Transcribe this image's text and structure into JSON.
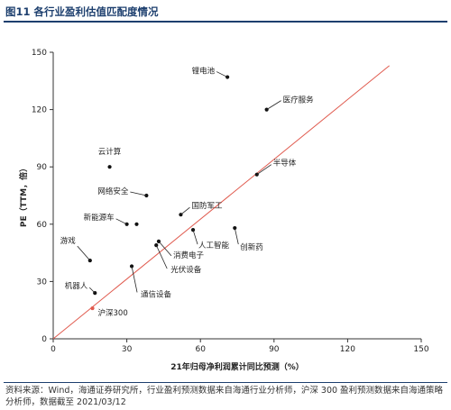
{
  "header": {
    "title": "图11 各行业盈利估值匹配度情况"
  },
  "footer": {
    "source": "资料来源：Wind，海通证券研究所，行业盈利预测数据来自海通行业分析师，沪深 300 盈利预测数据来自海通策略分析师，数据截至 2021/03/12"
  },
  "colors": {
    "reference": "#e05a4e",
    "points": "#111111",
    "axis": "#333333"
  },
  "chart_data": {
    "type": "scatter",
    "title": "",
    "xlabel": "21年归母净利润累计同比预测（%）",
    "ylabel": "PE（TTM，倍）",
    "xlim": [
      0,
      150
    ],
    "ylim": [
      0,
      150
    ],
    "xticks": [
      "0",
      "30",
      "60",
      "90",
      "120",
      "150"
    ],
    "yticks": [
      "0",
      "30",
      "60",
      "90",
      "120",
      "150"
    ],
    "grid": false,
    "reference_line": {
      "from": [
        0,
        0
      ],
      "to": [
        137,
        143
      ]
    },
    "points": [
      {
        "name": "锂电池",
        "x": 71,
        "y": 137
      },
      {
        "name": "医疗服务",
        "x": 87,
        "y": 120
      },
      {
        "name": "云计算",
        "x": 23,
        "y": 90
      },
      {
        "name": "半导体",
        "x": 83,
        "y": 86
      },
      {
        "name": "网络安全",
        "x": 38,
        "y": 75
      },
      {
        "name": "国防军工",
        "x": 52,
        "y": 65
      },
      {
        "name": "新能源车",
        "x": 30,
        "y": 60
      },
      {
        "name": "新能源车",
        "x": 34,
        "y": 60
      },
      {
        "name": "人工智能",
        "x": 57,
        "y": 57
      },
      {
        "name": "创新药",
        "x": 74,
        "y": 58
      },
      {
        "name": "消费电子",
        "x": 43,
        "y": 51
      },
      {
        "name": "光伏设备",
        "x": 42,
        "y": 49
      },
      {
        "name": "游戏",
        "x": 15,
        "y": 41
      },
      {
        "name": "通信设备",
        "x": 32,
        "y": 38
      },
      {
        "name": "机器人",
        "x": 17,
        "y": 24
      },
      {
        "name": "沪深300",
        "x": 16,
        "y": 16,
        "highlight": true
      }
    ]
  }
}
